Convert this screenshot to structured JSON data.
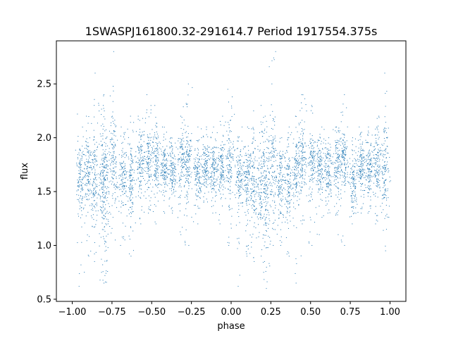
{
  "chart_data": {
    "type": "scatter",
    "title": "1SWASPJ161800.32-291614.7 Period 1917554.375s",
    "xlabel": "phase",
    "ylabel": "flux",
    "xlim": [
      -1.1,
      1.1
    ],
    "ylim": [
      0.48,
      2.9
    ],
    "xticks": [
      -1.0,
      -0.75,
      -0.5,
      -0.25,
      0.0,
      0.25,
      0.5,
      0.75,
      1.0
    ],
    "xtick_labels": [
      "−1.00",
      "−0.75",
      "−0.50",
      "−0.25",
      "0.00",
      "0.25",
      "0.50",
      "0.75",
      "1.00"
    ],
    "yticks": [
      0.5,
      1.0,
      1.5,
      2.0,
      2.5
    ],
    "ytick_labels": [
      "0.5",
      "1.0",
      "1.5",
      "2.0",
      "2.5"
    ],
    "grid": false,
    "marker_color": "#1f77b4",
    "series": [
      {
        "clusters": [
          {
            "x": -0.95,
            "mean": 1.62,
            "spread": 0.18,
            "min": 0.62,
            "max": 2.22
          },
          {
            "x": -0.9,
            "mean": 1.64,
            "spread": 0.16,
            "min": 0.9,
            "max": 2.2
          },
          {
            "x": -0.86,
            "mean": 1.58,
            "spread": 0.22,
            "min": 0.85,
            "max": 2.6
          },
          {
            "x": -0.81,
            "mean": 1.6,
            "spread": 0.25,
            "min": 0.75,
            "max": 2.4
          },
          {
            "x": -0.79,
            "mean": 1.55,
            "spread": 0.28,
            "min": 0.65,
            "max": 2.3
          },
          {
            "x": -0.74,
            "mean": 1.75,
            "spread": 0.22,
            "min": 1.05,
            "max": 2.8
          },
          {
            "x": -0.68,
            "mean": 1.62,
            "spread": 0.15,
            "min": 1.0,
            "max": 2.1
          },
          {
            "x": -0.63,
            "mean": 1.6,
            "spread": 0.2,
            "min": 0.9,
            "max": 2.2
          },
          {
            "x": -0.57,
            "mean": 1.78,
            "spread": 0.15,
            "min": 1.2,
            "max": 2.2
          },
          {
            "x": -0.52,
            "mean": 1.8,
            "spread": 0.14,
            "min": 1.3,
            "max": 2.4
          },
          {
            "x": -0.47,
            "mean": 1.75,
            "spread": 0.14,
            "min": 1.2,
            "max": 2.3
          },
          {
            "x": -0.42,
            "mean": 1.72,
            "spread": 0.12,
            "min": 1.3,
            "max": 2.1
          },
          {
            "x": -0.37,
            "mean": 1.7,
            "spread": 0.12,
            "min": 1.3,
            "max": 2.0
          },
          {
            "x": -0.31,
            "mean": 1.78,
            "spread": 0.15,
            "min": 1.1,
            "max": 2.2
          },
          {
            "x": -0.27,
            "mean": 1.75,
            "spread": 0.15,
            "min": 1.0,
            "max": 2.5
          },
          {
            "x": -0.21,
            "mean": 1.65,
            "spread": 0.14,
            "min": 1.2,
            "max": 2.1
          },
          {
            "x": -0.16,
            "mean": 1.72,
            "spread": 0.12,
            "min": 1.4,
            "max": 2.1
          },
          {
            "x": -0.11,
            "mean": 1.7,
            "spread": 0.13,
            "min": 1.3,
            "max": 2.1
          },
          {
            "x": -0.06,
            "mean": 1.75,
            "spread": 0.14,
            "min": 1.2,
            "max": 2.2
          },
          {
            "x": -0.01,
            "mean": 1.72,
            "spread": 0.18,
            "min": 1.0,
            "max": 2.45
          },
          {
            "x": 0.05,
            "mean": 1.62,
            "spread": 0.14,
            "min": 0.62,
            "max": 2.1
          },
          {
            "x": 0.1,
            "mean": 1.62,
            "spread": 0.15,
            "min": 0.9,
            "max": 2.1
          },
          {
            "x": 0.14,
            "mean": 1.6,
            "spread": 0.2,
            "min": 0.85,
            "max": 2.25
          },
          {
            "x": 0.19,
            "mean": 1.58,
            "spread": 0.25,
            "min": 0.75,
            "max": 2.3
          },
          {
            "x": 0.22,
            "mean": 1.55,
            "spread": 0.28,
            "min": 0.6,
            "max": 2.2
          },
          {
            "x": 0.26,
            "mean": 1.75,
            "spread": 0.22,
            "min": 1.0,
            "max": 2.8
          },
          {
            "x": 0.31,
            "mean": 1.6,
            "spread": 0.16,
            "min": 1.0,
            "max": 2.0
          },
          {
            "x": 0.36,
            "mean": 1.55,
            "spread": 0.18,
            "min": 0.9,
            "max": 2.1
          },
          {
            "x": 0.41,
            "mean": 1.7,
            "spread": 0.16,
            "min": 0.65,
            "max": 2.2
          },
          {
            "x": 0.45,
            "mean": 1.8,
            "spread": 0.14,
            "min": 1.2,
            "max": 2.4
          },
          {
            "x": 0.51,
            "mean": 1.75,
            "spread": 0.14,
            "min": 1.0,
            "max": 2.3
          },
          {
            "x": 0.56,
            "mean": 1.72,
            "spread": 0.12,
            "min": 1.1,
            "max": 2.1
          },
          {
            "x": 0.61,
            "mean": 1.68,
            "spread": 0.12,
            "min": 1.3,
            "max": 2.0
          },
          {
            "x": 0.67,
            "mean": 1.75,
            "spread": 0.15,
            "min": 1.1,
            "max": 2.1
          },
          {
            "x": 0.71,
            "mean": 1.78,
            "spread": 0.16,
            "min": 1.0,
            "max": 2.4
          },
          {
            "x": 0.77,
            "mean": 1.6,
            "spread": 0.14,
            "min": 1.2,
            "max": 2.0
          },
          {
            "x": 0.82,
            "mean": 1.72,
            "spread": 0.13,
            "min": 1.3,
            "max": 2.1
          },
          {
            "x": 0.87,
            "mean": 1.7,
            "spread": 0.13,
            "min": 1.3,
            "max": 2.1
          },
          {
            "x": 0.92,
            "mean": 1.75,
            "spread": 0.14,
            "min": 1.2,
            "max": 2.2
          },
          {
            "x": 0.97,
            "mean": 1.7,
            "spread": 0.2,
            "min": 0.95,
            "max": 2.6
          }
        ]
      }
    ]
  }
}
